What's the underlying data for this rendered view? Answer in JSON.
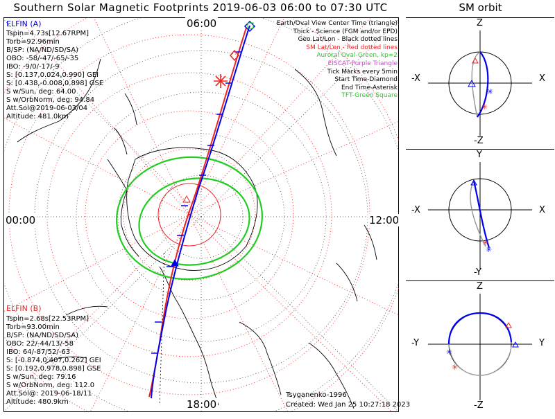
{
  "title": "Southern Solar Magnetic Footprints 2019-06-03 06:00 to 07:30 UTC",
  "sm_orbit_title": "SM orbit",
  "clock_labels": {
    "top": "06:00",
    "left": "00:00",
    "right": "12:00",
    "bottom": "18:00"
  },
  "elfin_a": {
    "name": "ELFIN (A)",
    "color": "#0000ee",
    "lines": [
      "Tspin=4.73s[12.67RPM]",
      "Torb=92.96min",
      "B/SP: (NA/ND/SD/SA)",
      "OBO: -58/-47/-65/-35",
      "IBO: -9/0/-17/-9",
      "S: [0.137,0.024,0.990] GEI",
      "S: [0.438,-0.008,0.898] GSE",
      "S w/Sun, deg: 64.00",
      "S w/OrbNorm, deg: 94.84",
      "Att.Sol@2019-06-03/04",
      "Altitude: 481.0km"
    ]
  },
  "elfin_b": {
    "name": "ELFIN (B)",
    "color": "#ee2222",
    "lines": [
      "Tspin=2.68s[22.53RPM]",
      "Torb=93.00min",
      "B/SP: (NA/ND/SD/SA)",
      "OBO: 22/-44/13/-58",
      "IBO: 64/-87/52/-63",
      "S: [-0.874,0.407,0.262] GEI",
      "S: [0.192,0.978,0.898] GSE",
      "S w/Sun, deg: 79.16",
      "S w/OrbNorm, deg: 112.0",
      "Att.Sol@: 2019-06-18/11",
      "Altitude: 480.9km"
    ]
  },
  "legend": [
    {
      "text": "Earth/Oval View Center Time (triangle)",
      "color": "#000000"
    },
    {
      "text": "Thick - Science (FGM and/or EPD)",
      "color": "#000000"
    },
    {
      "text": "Geo Lat/Lon - Black dotted lines",
      "color": "#000000"
    },
    {
      "text": "SM Lat/Lon - Red dotted lines",
      "color": "#ee2222"
    },
    {
      "text": "Auroral Oval-Green, kp=2",
      "color": "#22cc22"
    },
    {
      "text": "EISCAT-Purple Triangle",
      "color": "#cc44cc"
    },
    {
      "text": "Tick Marks every 5min",
      "color": "#000000"
    },
    {
      "text": "Start Time-Diamond",
      "color": "#000000"
    },
    {
      "text": "End Time-Asterisk",
      "color": "#000000"
    },
    {
      "text": "TFT-Green Square",
      "color": "#22cc22"
    }
  ],
  "footer": {
    "credit": "Tsyganenko-1996",
    "created": "Created: Wed Jan 25 10:27:18 2023"
  },
  "sm_panels": [
    {
      "id": "xz",
      "top": "Z",
      "bottom": "-Z",
      "left": "-X",
      "right": "X"
    },
    {
      "id": "xy",
      "top": "Y",
      "bottom": "-Y",
      "left": "-X",
      "right": "X"
    },
    {
      "id": "yz",
      "top": "Z",
      "bottom": "-Z",
      "left": "-Y",
      "right": "Y"
    }
  ]
}
